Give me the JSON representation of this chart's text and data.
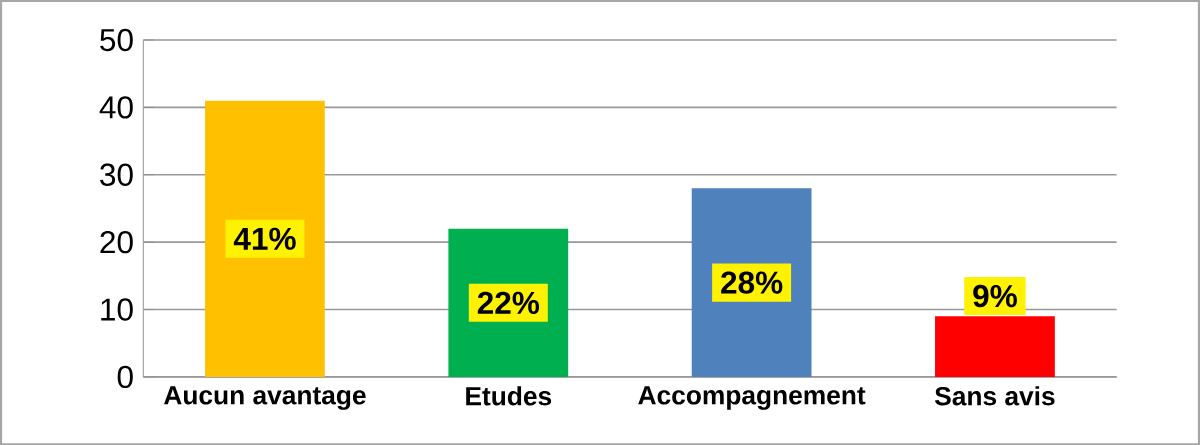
{
  "chart_data": {
    "type": "bar",
    "categories": [
      "Aucun avantage",
      "Etudes",
      "Accompagnement",
      "Sans avis"
    ],
    "values": [
      41,
      22,
      28,
      9
    ],
    "colors": [
      "#ffc000",
      "#00b050",
      "#4f81bd",
      "#ff0000"
    ],
    "value_labels": [
      "41%",
      "22%",
      "28%",
      "9%"
    ],
    "ylim": [
      0,
      50
    ],
    "yticks": [
      0,
      10,
      20,
      30,
      40,
      50
    ],
    "grid": "y"
  }
}
